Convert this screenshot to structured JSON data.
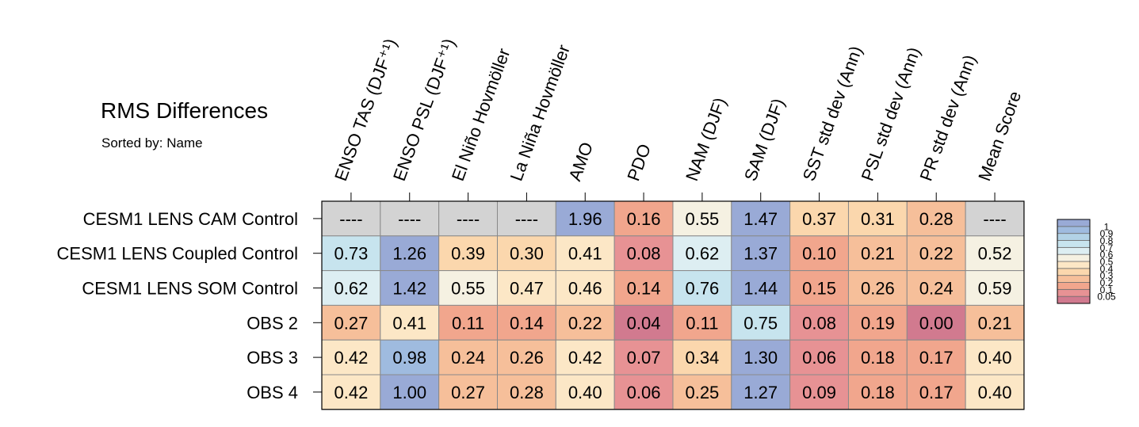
{
  "chart_data": {
    "type": "heatmap",
    "title": "RMS Differences",
    "subtitle": "Sorted by: Name",
    "columns": [
      "ENSO TAS (DJF⁺¹)",
      "ENSO PSL (DJF⁺¹)",
      "El Niño Hovmöller",
      "La Niña Hovmöller",
      "AMO",
      "PDO",
      "NAM (DJF)",
      "SAM (DJF)",
      "SST std dev (Ann)",
      "PSL std dev (Ann)",
      "PR std dev (Ann)",
      "Mean Score"
    ],
    "rows": [
      "CESM1 LENS CAM Control",
      "CESM1 LENS Coupled Control",
      "CESM1 LENS SOM Control",
      "OBS 2",
      "OBS 3",
      "OBS 4"
    ],
    "values": [
      [
        null,
        null,
        null,
        null,
        1.96,
        0.16,
        0.55,
        1.47,
        0.37,
        0.31,
        0.28,
        null
      ],
      [
        0.73,
        1.26,
        0.39,
        0.3,
        0.41,
        0.08,
        0.62,
        1.37,
        0.1,
        0.21,
        0.22,
        0.52
      ],
      [
        0.62,
        1.42,
        0.55,
        0.47,
        0.46,
        0.14,
        0.76,
        1.44,
        0.15,
        0.26,
        0.24,
        0.59
      ],
      [
        0.27,
        0.41,
        0.11,
        0.14,
        0.22,
        0.04,
        0.11,
        0.75,
        0.08,
        0.19,
        0.0,
        0.21
      ],
      [
        0.42,
        0.98,
        0.24,
        0.26,
        0.42,
        0.07,
        0.34,
        1.3,
        0.06,
        0.18,
        0.17,
        0.4
      ],
      [
        0.42,
        1.0,
        0.27,
        0.28,
        0.4,
        0.06,
        0.25,
        1.27,
        0.09,
        0.18,
        0.17,
        0.4
      ]
    ],
    "cell_labels": [
      [
        "----",
        "----",
        "----",
        "----",
        "1.96",
        "0.16",
        "0.55",
        "1.47",
        "0.37",
        "0.31",
        "0.28",
        "----"
      ],
      [
        "0.73",
        "1.26",
        "0.39",
        "0.30",
        "0.41",
        "0.08",
        "0.62",
        "1.37",
        "0.10",
        "0.21",
        "0.22",
        "0.52"
      ],
      [
        "0.62",
        "1.42",
        "0.55",
        "0.47",
        "0.46",
        "0.14",
        "0.76",
        "1.44",
        "0.15",
        "0.26",
        "0.24",
        "0.59"
      ],
      [
        "0.27",
        "0.41",
        "0.11",
        "0.14",
        "0.22",
        "0.04",
        "0.11",
        "0.75",
        "0.08",
        "0.19",
        "0.00",
        "0.21"
      ],
      [
        "0.42",
        "0.98",
        "0.24",
        "0.26",
        "0.42",
        "0.07",
        "0.34",
        "1.30",
        "0.06",
        "0.18",
        "0.17",
        "0.40"
      ],
      [
        "0.42",
        "1.00",
        "0.27",
        "0.28",
        "0.40",
        "0.06",
        "0.25",
        "1.27",
        "0.09",
        "0.18",
        "0.17",
        "0.40"
      ]
    ],
    "missing_color": "#d3d3d3",
    "colorbar": {
      "levels": [
        0.05,
        0.1,
        0.2,
        0.3,
        0.4,
        0.5,
        0.6,
        0.7,
        0.8,
        0.9,
        1
      ],
      "labels": [
        "0.05",
        "0.1",
        "0.2",
        "0.3",
        "0.4",
        "0.5",
        "0.6",
        "0.7",
        "0.8",
        "0.9",
        "1"
      ],
      "colors": [
        "#d17a8f",
        "#e79294",
        "#f1a68d",
        "#f6bf9a",
        "#fbd7ad",
        "#fce7c6",
        "#f5f1e2",
        "#ddeef2",
        "#c7e4ee",
        "#b2d2e6",
        "#9fbbdf",
        "#99aad6"
      ]
    }
  }
}
